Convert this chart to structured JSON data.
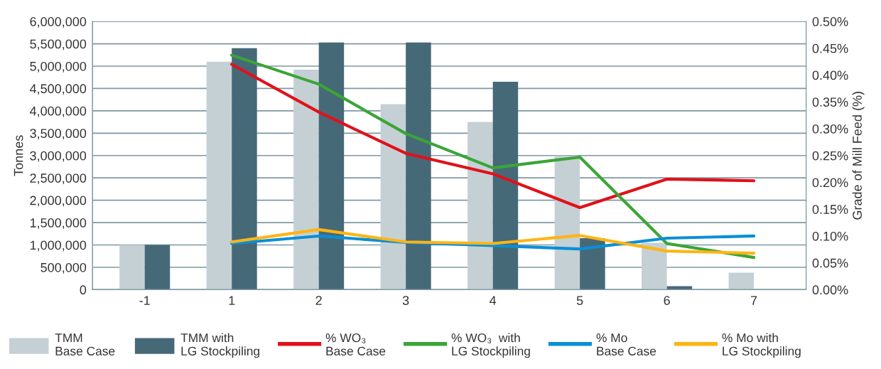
{
  "chart_data": {
    "type": "bar",
    "ylabel": "Tonnes",
    "y2label": "Grade of Mill Feed (%)",
    "categories": [
      "-1",
      "1",
      "2",
      "3",
      "4",
      "5",
      "6",
      "7"
    ],
    "series": [
      {
        "name": "TMM\nBase Case",
        "color": "#c5d0d5",
        "values": [
          1000000,
          5100000,
          4920000,
          4150000,
          3750000,
          3000000,
          1050000,
          380000
        ]
      },
      {
        "name": "TMM with\nLG Stockpiling",
        "color": "#466978",
        "values": [
          1000000,
          5400000,
          5530000,
          5530000,
          4650000,
          1150000,
          80000,
          null
        ]
      },
      {
        "name": "% WO₃\nBase Case",
        "type": "line",
        "axis": "y2",
        "color": "#e2101a",
        "values": [
          null,
          0.42,
          0.331,
          0.254,
          0.216,
          0.153,
          0.206,
          0.203
        ]
      },
      {
        "name": "% WO₃  with\nLG Stockpiling",
        "type": "line",
        "axis": "y2",
        "color": "#3aa537",
        "values": [
          null,
          0.437,
          0.383,
          0.291,
          0.227,
          0.247,
          0.086,
          0.06
        ]
      },
      {
        "name": "% Mo\nBase Case",
        "type": "line",
        "axis": "y2",
        "color": "#0a8fd6",
        "values": [
          null,
          0.086,
          0.1,
          0.088,
          0.082,
          0.076,
          0.096,
          0.1
        ]
      },
      {
        "name": "% Mo with\nLG Stockpiling",
        "type": "line",
        "axis": "y2",
        "color": "#fdb515",
        "values": [
          null,
          0.089,
          0.112,
          0.089,
          0.086,
          0.101,
          0.072,
          0.068
        ]
      }
    ],
    "ylim": [
      0,
      6000000
    ],
    "yticks": [
      {
        "value": 0,
        "label": "0"
      },
      {
        "value": 500000,
        "label": "500,000"
      },
      {
        "value": 1000000,
        "label": "1,000,000"
      },
      {
        "value": 1500000,
        "label": "1,500,000"
      },
      {
        "value": 2000000,
        "label": "2,000,000"
      },
      {
        "value": 2500000,
        "label": "2,500,000"
      },
      {
        "value": 3000000,
        "label": "3,000,000"
      },
      {
        "value": 3500000,
        "label": "3,500,000"
      },
      {
        "value": 4000000,
        "label": "4,000,000"
      },
      {
        "value": 4500000,
        "label": "4,500,000"
      },
      {
        "value": 5000000,
        "label": "5,000,000"
      },
      {
        "value": 5500000,
        "label": "5,500,000"
      },
      {
        "value": 6000000,
        "label": "6,000,000"
      }
    ],
    "y2lim": [
      0,
      0.5
    ],
    "y2ticks": [
      {
        "value": 0,
        "label": "0.00%"
      },
      {
        "value": 0.05,
        "label": "0.05%"
      },
      {
        "value": 0.1,
        "label": "0.10%"
      },
      {
        "value": 0.15,
        "label": "0.15%"
      },
      {
        "value": 0.2,
        "label": "0.20%"
      },
      {
        "value": 0.25,
        "label": "0.25%"
      },
      {
        "value": 0.3,
        "label": "0.30%"
      },
      {
        "value": 0.35,
        "label": "0.35%"
      },
      {
        "value": 0.4,
        "label": "0.40%"
      },
      {
        "value": 0.45,
        "label": "0.45%"
      },
      {
        "value": 0.5,
        "label": "0.50%"
      }
    ],
    "grid": "y",
    "legend": "bottom"
  }
}
